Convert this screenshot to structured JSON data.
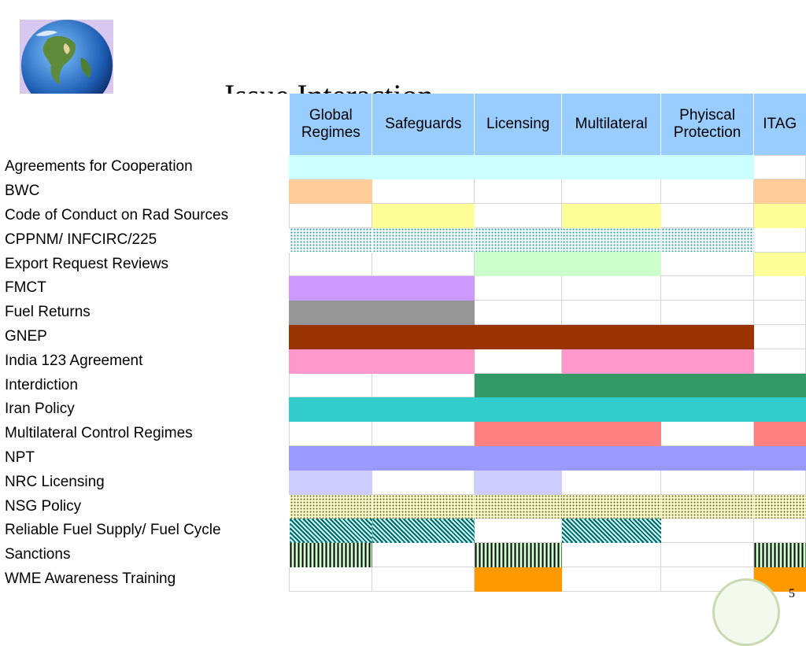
{
  "slide": {
    "title": "Issue Interaction",
    "page_number": "5"
  },
  "icons": {
    "logo": "globe-icon",
    "seal": "seal-icon"
  },
  "columns": [
    "Global\nRegimes",
    "Safeguards",
    "Licensing",
    "Multilateral",
    "Phyiscal\nProtection",
    "ITAG"
  ],
  "patterns": {
    "dots-cyan": "dotted cyan",
    "dots-yellow": "dotted yellow",
    "hatch-teal": "diagonal hatch teal",
    "stripe-green": "vertical stripes green"
  },
  "rows": [
    {
      "label": "Agreements for Cooperation",
      "cells": [
        "#ccffff",
        "#ccffff",
        "#ccffff",
        "#ccffff",
        "#ccffff",
        ""
      ]
    },
    {
      "label": "BWC",
      "cells": [
        "#ffcc99",
        "",
        "",
        "",
        "",
        "#ffcc99"
      ]
    },
    {
      "label": "Code of Conduct on Rad Sources",
      "cells": [
        "",
        "#ffff99",
        "",
        "#ffff99",
        "",
        "#ffff99"
      ]
    },
    {
      "label": "CPPNM/ INFCIRC/225",
      "cells": [
        "dots-cyan",
        "dots-cyan",
        "dots-cyan",
        "dots-cyan",
        "dots-cyan",
        ""
      ]
    },
    {
      "label": "Export Request Reviews",
      "cells": [
        "",
        "",
        "#ccffcc",
        "#ccffcc",
        "",
        "#ffff99"
      ]
    },
    {
      "label": "FMCT",
      "cells": [
        "#cc99ff",
        "#cc99ff",
        "",
        "",
        "",
        ""
      ]
    },
    {
      "label": "Fuel Returns",
      "cells": [
        "#969696",
        "#969696",
        "",
        "",
        "",
        ""
      ]
    },
    {
      "label": "GNEP",
      "cells": [
        "#993300",
        "#993300",
        "#993300",
        "#993300",
        "#993300",
        ""
      ]
    },
    {
      "label": "India 123 Agreement",
      "cells": [
        "#ff99cc",
        "#ff99cc",
        "",
        "#ff99cc",
        "#ff99cc",
        ""
      ]
    },
    {
      "label": "Interdiction",
      "cells": [
        "",
        "",
        "#339966",
        "#339966",
        "#339966",
        "#339966"
      ]
    },
    {
      "label": "Iran Policy",
      "cells": [
        "#33cccc",
        "#33cccc",
        "#33cccc",
        "#33cccc",
        "#33cccc",
        "#33cccc"
      ]
    },
    {
      "label": "Multilateral Control Regimes",
      "cells": [
        "",
        "",
        "#ff8080",
        "#ff8080",
        "",
        "#ff8080"
      ]
    },
    {
      "label": "NPT",
      "cells": [
        "#9999ff",
        "#9999ff",
        "#9999ff",
        "#9999ff",
        "#9999ff",
        "#9999ff"
      ]
    },
    {
      "label": "NRC Licensing",
      "cells": [
        "#ccccff",
        "",
        "#ccccff",
        "",
        "",
        ""
      ]
    },
    {
      "label": "NSG Policy",
      "cells": [
        "dots-yellow",
        "dots-yellow",
        "dots-yellow",
        "dots-yellow",
        "dots-yellow",
        "dots-yellow"
      ]
    },
    {
      "label": "Reliable Fuel Supply/ Fuel Cycle",
      "cells": [
        "hatch-teal",
        "hatch-teal",
        "",
        "hatch-teal",
        "",
        ""
      ]
    },
    {
      "label": "Sanctions",
      "cells": [
        "stripe-green",
        "",
        "stripe-green",
        "",
        "",
        "stripe-green"
      ]
    },
    {
      "label": "WME Awareness Training",
      "cells": [
        "",
        "",
        "#ff9900",
        "",
        "",
        "#ff9900"
      ]
    }
  ]
}
